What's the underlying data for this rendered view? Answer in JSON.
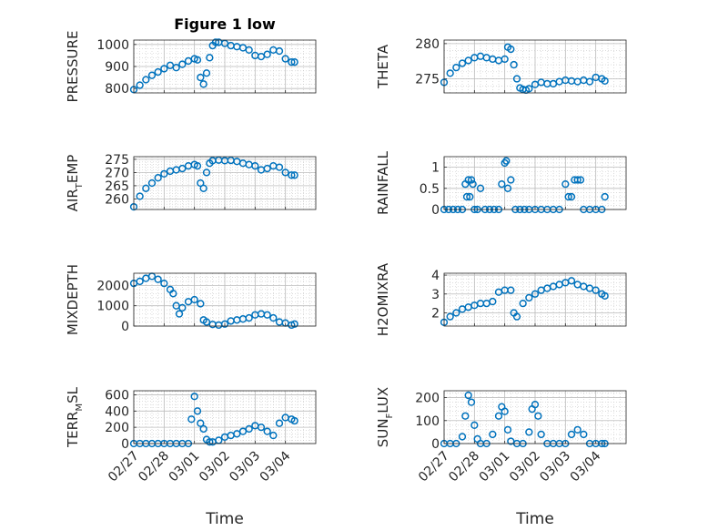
{
  "figure": {
    "title": "Figure 1 low",
    "colors": {
      "marker": "#0072BD",
      "axis": "#262626",
      "grid": "#c8c8c8"
    }
  },
  "chart_data": [
    {
      "type": "scatter",
      "id": "pressure",
      "ylabel": {
        "main": "PRESSURE",
        "sub": "",
        "tail": ""
      },
      "title": "Figure 1 low",
      "xlim": [
        0,
        6
      ],
      "ylim": [
        780,
        1020
      ],
      "yticks": [
        800,
        900,
        1000
      ],
      "xticks": [
        "02/27",
        "02/28",
        "03/01",
        "03/02",
        "03/03",
        "03/04"
      ],
      "show_xticklabels": false,
      "xlabel": "",
      "series": [
        {
          "x": [
            0,
            0.2,
            0.4,
            0.6,
            0.8,
            1.0,
            1.2,
            1.4,
            1.6,
            1.8,
            2.0,
            2.1,
            2.2,
            2.3,
            2.4,
            2.5,
            2.6,
            2.7,
            2.8,
            3.0,
            3.2,
            3.4,
            3.6,
            3.8,
            4.0,
            4.2,
            4.4,
            4.6,
            4.8,
            5.0,
            5.2,
            5.3
          ],
          "y": [
            795,
            815,
            840,
            860,
            875,
            890,
            905,
            895,
            910,
            925,
            935,
            930,
            850,
            820,
            870,
            940,
            995,
            1010,
            1010,
            1005,
            995,
            990,
            985,
            975,
            950,
            945,
            955,
            975,
            970,
            935,
            920,
            920
          ]
        }
      ]
    },
    {
      "type": "scatter",
      "id": "theta",
      "ylabel": {
        "main": "THETA",
        "sub": "",
        "tail": ""
      },
      "xlim": [
        0,
        6
      ],
      "ylim": [
        273,
        280.5
      ],
      "yticks": [
        275,
        280
      ],
      "xticks": [
        "02/27",
        "02/28",
        "03/01",
        "03/02",
        "03/03",
        "03/04"
      ],
      "show_xticklabels": false,
      "xlabel": "",
      "series": [
        {
          "x": [
            0,
            0.2,
            0.4,
            0.6,
            0.8,
            1.0,
            1.2,
            1.4,
            1.6,
            1.8,
            2.0,
            2.1,
            2.2,
            2.3,
            2.4,
            2.5,
            2.6,
            2.7,
            2.8,
            3.0,
            3.2,
            3.4,
            3.6,
            3.8,
            4.0,
            4.2,
            4.4,
            4.6,
            4.8,
            5.0,
            5.2,
            5.3
          ],
          "y": [
            274.5,
            275.8,
            276.6,
            277.2,
            277.6,
            278.0,
            278.2,
            278.0,
            277.8,
            277.6,
            277.8,
            279.5,
            279.2,
            277.0,
            275.0,
            273.7,
            273.5,
            273.4,
            273.6,
            274.2,
            274.5,
            274.3,
            274.3,
            274.6,
            274.8,
            274.7,
            274.6,
            274.8,
            274.6,
            275.2,
            275.0,
            274.7
          ]
        }
      ]
    },
    {
      "type": "scatter",
      "id": "air-temp",
      "ylabel": {
        "main": "AIR",
        "sub": "T",
        "tail": "EMP"
      },
      "xlim": [
        0,
        6
      ],
      "ylim": [
        256,
        276
      ],
      "yticks": [
        260,
        265,
        270,
        275
      ],
      "xticks": [
        "02/27",
        "02/28",
        "03/01",
        "03/02",
        "03/03",
        "03/04"
      ],
      "show_xticklabels": false,
      "xlabel": "",
      "series": [
        {
          "x": [
            0,
            0.2,
            0.4,
            0.6,
            0.8,
            1.0,
            1.2,
            1.4,
            1.6,
            1.8,
            2.0,
            2.1,
            2.2,
            2.3,
            2.4,
            2.5,
            2.6,
            2.8,
            3.0,
            3.2,
            3.4,
            3.6,
            3.8,
            4.0,
            4.2,
            4.4,
            4.6,
            4.8,
            5.0,
            5.2,
            5.3
          ],
          "y": [
            257,
            261,
            264,
            266,
            268,
            269.5,
            270.5,
            271,
            271.5,
            272.5,
            273,
            272.5,
            266,
            264,
            270,
            273.5,
            274.5,
            274.7,
            274.5,
            274.6,
            274.2,
            273.5,
            273,
            272.5,
            271,
            271.5,
            272.5,
            272,
            270,
            269,
            269
          ]
        }
      ]
    },
    {
      "type": "scatter",
      "id": "rainfall",
      "ylabel": {
        "main": "RAINFALL",
        "sub": "",
        "tail": ""
      },
      "xlim": [
        0,
        6
      ],
      "ylim": [
        0,
        1.25
      ],
      "yticks": [
        0,
        0.5,
        1
      ],
      "xticks": [
        "02/27",
        "02/28",
        "03/01",
        "03/02",
        "03/03",
        "03/04"
      ],
      "show_xticklabels": false,
      "xlabel": "",
      "series": [
        {
          "x": [
            0,
            0.15,
            0.3,
            0.45,
            0.6,
            0.7,
            0.75,
            0.8,
            0.85,
            0.9,
            0.95,
            1.0,
            1.1,
            1.2,
            1.35,
            1.5,
            1.65,
            1.8,
            1.9,
            2.0,
            2.05,
            2.1,
            2.2,
            2.35,
            2.5,
            2.65,
            2.8,
            3.0,
            3.2,
            3.4,
            3.6,
            3.8,
            4.0,
            4.1,
            4.2,
            4.3,
            4.4,
            4.5,
            4.6,
            4.8,
            5.0,
            5.2,
            5.3
          ],
          "y": [
            0,
            0,
            0,
            0,
            0,
            0.6,
            0.3,
            0.7,
            0.3,
            0.7,
            0.6,
            0,
            0,
            0.5,
            0,
            0,
            0,
            0,
            0.6,
            1.1,
            1.15,
            0.5,
            0.7,
            0,
            0,
            0,
            0,
            0,
            0,
            0,
            0,
            0,
            0.6,
            0.3,
            0.3,
            0.7,
            0.7,
            0.7,
            0,
            0,
            0,
            0,
            0.3
          ]
        }
      ]
    },
    {
      "type": "scatter",
      "id": "mixdepth",
      "ylabel": {
        "main": "MIXDEPTH",
        "sub": "",
        "tail": ""
      },
      "xlim": [
        0,
        6
      ],
      "ylim": [
        0,
        2600
      ],
      "yticks": [
        0,
        1000,
        2000
      ],
      "xticks": [
        "02/27",
        "02/28",
        "03/01",
        "03/02",
        "03/03",
        "03/04"
      ],
      "show_xticklabels": false,
      "xlabel": "",
      "series": [
        {
          "x": [
            0,
            0.2,
            0.4,
            0.6,
            0.8,
            1.0,
            1.2,
            1.3,
            1.4,
            1.5,
            1.6,
            1.8,
            2.0,
            2.2,
            2.3,
            2.4,
            2.6,
            2.8,
            3.0,
            3.2,
            3.4,
            3.6,
            3.8,
            4.0,
            4.2,
            4.4,
            4.6,
            4.8,
            5.0,
            5.2,
            5.3
          ],
          "y": [
            2100,
            2200,
            2350,
            2450,
            2300,
            2100,
            1800,
            1600,
            1000,
            600,
            900,
            1200,
            1300,
            1100,
            300,
            200,
            80,
            50,
            100,
            250,
            300,
            350,
            400,
            550,
            600,
            550,
            400,
            200,
            150,
            50,
            100
          ]
        }
      ]
    },
    {
      "type": "scatter",
      "id": "h2omixra",
      "ylabel": {
        "main": "H2OMIXRA",
        "sub": "",
        "tail": ""
      },
      "xlim": [
        0,
        6
      ],
      "ylim": [
        1.3,
        4.1
      ],
      "yticks": [
        2,
        3,
        4
      ],
      "xticks": [
        "02/27",
        "02/28",
        "03/01",
        "03/02",
        "03/03",
        "03/04"
      ],
      "show_xticklabels": false,
      "xlabel": "",
      "series": [
        {
          "x": [
            0,
            0.2,
            0.4,
            0.6,
            0.8,
            1.0,
            1.2,
            1.4,
            1.6,
            1.8,
            2.0,
            2.2,
            2.3,
            2.4,
            2.6,
            2.8,
            3.0,
            3.2,
            3.4,
            3.6,
            3.8,
            4.0,
            4.2,
            4.4,
            4.6,
            4.8,
            5.0,
            5.2,
            5.3
          ],
          "y": [
            1.5,
            1.8,
            2.0,
            2.2,
            2.3,
            2.4,
            2.5,
            2.5,
            2.6,
            3.1,
            3.2,
            3.2,
            2.0,
            1.8,
            2.5,
            2.8,
            3.0,
            3.2,
            3.3,
            3.4,
            3.5,
            3.6,
            3.7,
            3.5,
            3.4,
            3.3,
            3.2,
            3.0,
            2.9
          ]
        }
      ]
    },
    {
      "type": "scatter",
      "id": "terr-msl",
      "ylabel": {
        "main": "TERR",
        "sub": "M",
        "tail": "SL"
      },
      "xlim": [
        0,
        6
      ],
      "ylim": [
        0,
        650
      ],
      "yticks": [
        0,
        200,
        400,
        600
      ],
      "xticks": [
        "02/27",
        "02/28",
        "03/01",
        "03/02",
        "03/03",
        "03/04"
      ],
      "show_xticklabels": true,
      "xlabel": "Time",
      "series": [
        {
          "x": [
            0,
            0.2,
            0.4,
            0.6,
            0.8,
            1.0,
            1.2,
            1.4,
            1.6,
            1.8,
            1.9,
            2.0,
            2.1,
            2.2,
            2.3,
            2.4,
            2.5,
            2.6,
            2.8,
            3.0,
            3.2,
            3.4,
            3.6,
            3.8,
            4.0,
            4.2,
            4.4,
            4.6,
            4.8,
            5.0,
            5.2,
            5.3
          ],
          "y": [
            0,
            0,
            0,
            0,
            0,
            0,
            0,
            0,
            0,
            0,
            300,
            580,
            400,
            250,
            180,
            50,
            20,
            20,
            40,
            80,
            100,
            120,
            150,
            180,
            220,
            200,
            150,
            100,
            250,
            320,
            300,
            280
          ]
        }
      ]
    },
    {
      "type": "scatter",
      "id": "sun-flux",
      "ylabel": {
        "main": "SUN",
        "sub": "F",
        "tail": "LUX"
      },
      "xlim": [
        0,
        6
      ],
      "ylim": [
        0,
        230
      ],
      "yticks": [
        0,
        100,
        200
      ],
      "xticks": [
        "02/27",
        "02/28",
        "03/01",
        "03/02",
        "03/03",
        "03/04"
      ],
      "show_xticklabels": true,
      "xlabel": "Time",
      "series": [
        {
          "x": [
            0,
            0.2,
            0.4,
            0.6,
            0.7,
            0.8,
            0.9,
            1.0,
            1.1,
            1.2,
            1.4,
            1.6,
            1.8,
            1.9,
            2.0,
            2.1,
            2.2,
            2.4,
            2.6,
            2.8,
            2.9,
            3.0,
            3.1,
            3.2,
            3.4,
            3.6,
            3.8,
            4.0,
            4.2,
            4.4,
            4.6,
            4.8,
            5.0,
            5.2,
            5.3
          ],
          "y": [
            0,
            0,
            0,
            30,
            120,
            210,
            180,
            80,
            20,
            0,
            0,
            40,
            120,
            160,
            140,
            60,
            10,
            0,
            0,
            50,
            150,
            170,
            120,
            40,
            0,
            0,
            0,
            0,
            40,
            60,
            40,
            0,
            0,
            0,
            0
          ]
        }
      ]
    }
  ]
}
